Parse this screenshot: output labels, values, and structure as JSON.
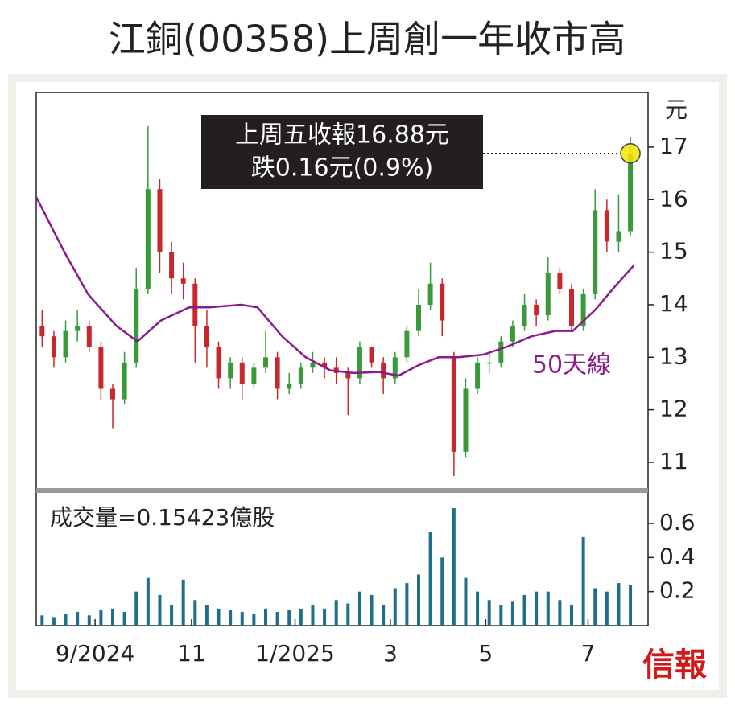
{
  "logo": "信報",
  "chart_data": [
    {
      "type": "candlestick",
      "title": "江銅(00358)上周創一年收市高",
      "y_label": "元",
      "annotations": [
        "上周五收報16.88元",
        "跌0.16元(0.9%)"
      ],
      "up_color": "#3a9a3a",
      "down_color": "#c8282c",
      "candles": {
        "x": [
          2.5,
          7.5,
          12.5,
          17.5,
          22.5,
          27.5,
          32.5,
          37.5,
          42.5,
          47.5,
          52.5,
          57.5,
          62.5,
          67.5,
          72.5,
          77.5,
          82.5,
          87.5,
          92.5,
          97.5,
          102.5,
          107.5,
          112.5,
          117.5,
          122.5,
          127.5,
          132.5,
          137.5,
          142.5,
          147.5,
          152.5,
          157.5,
          162.5,
          167.5,
          172.5,
          177.5,
          182.5,
          187.5,
          192.5,
          197.5,
          202.5,
          207.5,
          212.5,
          217.5,
          222.5,
          227.5,
          232.5,
          237.5,
          242.5,
          247.5,
          252.5
        ],
        "open": [
          13.6,
          13.4,
          13.0,
          13.5,
          13.6,
          13.2,
          12.4,
          12.2,
          12.9,
          14.3,
          16.2,
          15.0,
          14.5,
          14.4,
          13.6,
          13.2,
          12.6,
          12.9,
          12.5,
          12.8,
          13.0,
          12.4,
          12.5,
          12.8,
          12.9,
          12.8,
          12.7,
          12.6,
          13.2,
          12.9,
          12.6,
          13.0,
          13.5,
          14.0,
          14.4,
          13.0,
          11.2,
          12.4,
          12.9,
          12.9,
          13.3,
          13.6,
          14.0,
          13.8,
          14.6,
          14.3,
          13.6,
          14.2,
          15.8,
          15.2,
          15.4
        ],
        "high": [
          13.9,
          13.5,
          13.7,
          13.9,
          13.7,
          13.3,
          12.5,
          13.1,
          14.7,
          17.4,
          16.4,
          15.2,
          14.8,
          14.5,
          13.9,
          13.3,
          13.0,
          13.0,
          12.9,
          13.5,
          13.1,
          12.7,
          12.9,
          13.1,
          13.0,
          13.0,
          12.8,
          13.3,
          13.2,
          13.0,
          13.1,
          13.6,
          14.3,
          14.8,
          14.5,
          13.1,
          12.6,
          13.0,
          13.1,
          13.4,
          13.7,
          14.2,
          14.1,
          14.9,
          14.7,
          14.4,
          14.3,
          16.2,
          16.0,
          16.1,
          17.2
        ],
        "low": [
          13.2,
          12.8,
          12.9,
          13.3,
          13.1,
          12.2,
          11.65,
          12.1,
          12.8,
          14.2,
          14.6,
          14.2,
          14.1,
          12.9,
          12.8,
          12.4,
          12.4,
          12.2,
          12.4,
          12.7,
          12.2,
          12.3,
          12.4,
          12.7,
          12.6,
          12.5,
          11.9,
          12.5,
          12.8,
          12.3,
          12.5,
          12.9,
          13.4,
          13.9,
          13.4,
          10.74,
          11.1,
          12.3,
          12.7,
          12.8,
          13.2,
          13.5,
          13.6,
          13.7,
          14.2,
          13.5,
          13.5,
          14.1,
          15.0,
          15.0,
          15.3
        ],
        "close": [
          13.4,
          13.0,
          13.5,
          13.6,
          13.2,
          12.4,
          12.2,
          12.9,
          14.3,
          16.2,
          15.0,
          14.5,
          14.4,
          13.6,
          13.2,
          12.6,
          12.9,
          12.5,
          12.8,
          13.0,
          12.4,
          12.5,
          12.8,
          12.9,
          12.8,
          12.7,
          12.6,
          13.2,
          12.9,
          12.6,
          13.0,
          13.5,
          14.0,
          14.4,
          13.7,
          11.2,
          12.4,
          12.9,
          12.9,
          13.3,
          13.6,
          14.0,
          13.8,
          14.6,
          14.3,
          13.6,
          14.2,
          15.8,
          15.2,
          15.4,
          16.88
        ]
      },
      "series": [
        {
          "name": "50天線",
          "color": "#8b1a8b",
          "x": [
            0,
            12,
            22,
            34,
            43,
            53,
            65,
            73.5,
            87,
            94,
            104.5,
            114.5,
            125,
            135,
            145.5,
            154,
            162.5,
            171,
            179.5,
            190,
            200,
            210.5,
            220.5,
            228,
            237.5,
            246,
            254
          ],
          "values": [
            16.05,
            15.0,
            14.2,
            13.6,
            13.3,
            13.7,
            13.95,
            13.95,
            14.0,
            13.95,
            13.4,
            13.0,
            12.75,
            12.7,
            12.72,
            12.65,
            12.85,
            13.0,
            13.0,
            13.05,
            13.2,
            13.4,
            13.5,
            13.5,
            13.9,
            14.35,
            14.75
          ]
        }
      ],
      "xlim": [
        0,
        260
      ],
      "ylim": [
        10.54,
        18.04
      ],
      "yticks": [
        11,
        12,
        13,
        14,
        15,
        16,
        17
      ]
    },
    {
      "type": "bar",
      "title": "成交量=0.15423億股",
      "color": "#1f6f8b",
      "x": [
        2.5,
        7.5,
        12.5,
        17.5,
        22.5,
        27.5,
        32.5,
        37.5,
        42.5,
        47.5,
        52.5,
        57.5,
        62.5,
        67.5,
        72.5,
        77.5,
        82.5,
        87.5,
        92.5,
        97.5,
        102.5,
        107.5,
        112.5,
        117.5,
        122.5,
        127.5,
        132.5,
        137.5,
        142.5,
        147.5,
        152.5,
        157.5,
        162.5,
        167.5,
        172.5,
        177.5,
        182.5,
        187.5,
        192.5,
        197.5,
        202.5,
        207.5,
        212.5,
        217.5,
        222.5,
        227.5,
        232.5,
        237.5,
        242.5,
        247.5,
        252.5
      ],
      "values": [
        0.06,
        0.05,
        0.07,
        0.08,
        0.06,
        0.09,
        0.1,
        0.08,
        0.2,
        0.28,
        0.18,
        0.12,
        0.27,
        0.15,
        0.12,
        0.1,
        0.09,
        0.08,
        0.07,
        0.1,
        0.08,
        0.09,
        0.1,
        0.12,
        0.1,
        0.15,
        0.13,
        0.2,
        0.18,
        0.12,
        0.22,
        0.25,
        0.3,
        0.55,
        0.4,
        0.69,
        0.28,
        0.2,
        0.15,
        0.12,
        0.14,
        0.18,
        0.2,
        0.2,
        0.15,
        0.12,
        0.52,
        0.22,
        0.2,
        0.25,
        0.24
      ],
      "xlim": [
        0,
        260
      ],
      "ylim": [
        0,
        0.77
      ],
      "yticks": [
        0.2,
        0.4,
        0.6
      ],
      "xticks": [
        {
          "value": 25,
          "label": "9/2024"
        },
        {
          "value": 66,
          "label": "11"
        },
        {
          "value": 110,
          "label": "1/2025"
        },
        {
          "value": 150.5,
          "label": "3"
        },
        {
          "value": 191,
          "label": "5"
        },
        {
          "value": 234.5,
          "label": "7"
        }
      ]
    }
  ]
}
